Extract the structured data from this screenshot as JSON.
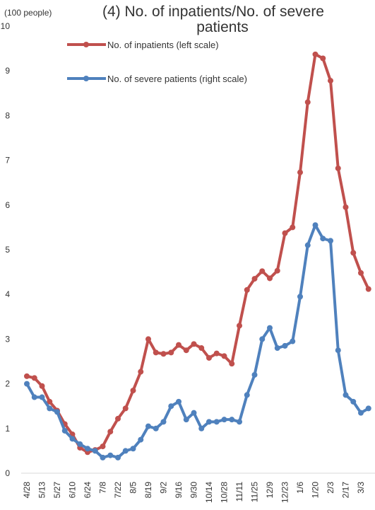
{
  "chart_data": {
    "type": "line",
    "title_line1": "(4) No. of inpatients/No. of severe",
    "title_line2": "patients",
    "unit_label": "(100 people)",
    "y_ticks": [
      "0",
      "1",
      "2",
      "3",
      "4",
      "5",
      "6",
      "7",
      "8",
      "9",
      "10"
    ],
    "ylim": [
      0,
      10
    ],
    "x_tick_labels": [
      "4/28",
      "5/13",
      "5/27",
      "6/10",
      "6/24",
      "7/8",
      "7/22",
      "8/5",
      "8/19",
      "9/2",
      "9/16",
      "9/30",
      "10/14",
      "10/28",
      "11/11",
      "11/25",
      "12/9",
      "12/23",
      "1/6",
      "1/20",
      "2/3",
      "2/17",
      "3/3"
    ],
    "series": [
      {
        "name": "No. of inpatients (left scale)",
        "color": "#c0504d",
        "values": [
          2.17,
          2.13,
          1.95,
          1.6,
          1.4,
          1.1,
          0.87,
          0.57,
          0.47,
          0.52,
          0.6,
          0.93,
          1.22,
          1.45,
          1.85,
          2.27,
          3.0,
          2.7,
          2.67,
          2.7,
          2.87,
          2.75,
          2.89,
          2.8,
          2.58,
          2.68,
          2.62,
          2.45,
          3.3,
          4.1,
          4.35,
          4.52,
          4.36,
          4.53,
          5.37,
          5.5,
          6.73,
          8.3,
          9.37,
          9.28,
          8.78,
          6.82,
          5.95,
          4.93,
          4.48,
          4.12
        ]
      },
      {
        "name": "No. of severe patients (right scale)",
        "color": "#4f81bd",
        "values": [
          2.0,
          1.7,
          1.7,
          1.45,
          1.37,
          0.95,
          0.77,
          0.65,
          0.55,
          0.5,
          0.35,
          0.4,
          0.35,
          0.5,
          0.55,
          0.75,
          1.05,
          1.0,
          1.15,
          1.5,
          1.6,
          1.2,
          1.35,
          1.0,
          1.15,
          1.15,
          1.2,
          1.2,
          1.15,
          1.75,
          2.2,
          3.0,
          3.25,
          2.8,
          2.85,
          2.95,
          3.95,
          5.1,
          5.55,
          5.25,
          5.2,
          2.75,
          1.75,
          1.6,
          1.35,
          1.45
        ]
      }
    ]
  }
}
